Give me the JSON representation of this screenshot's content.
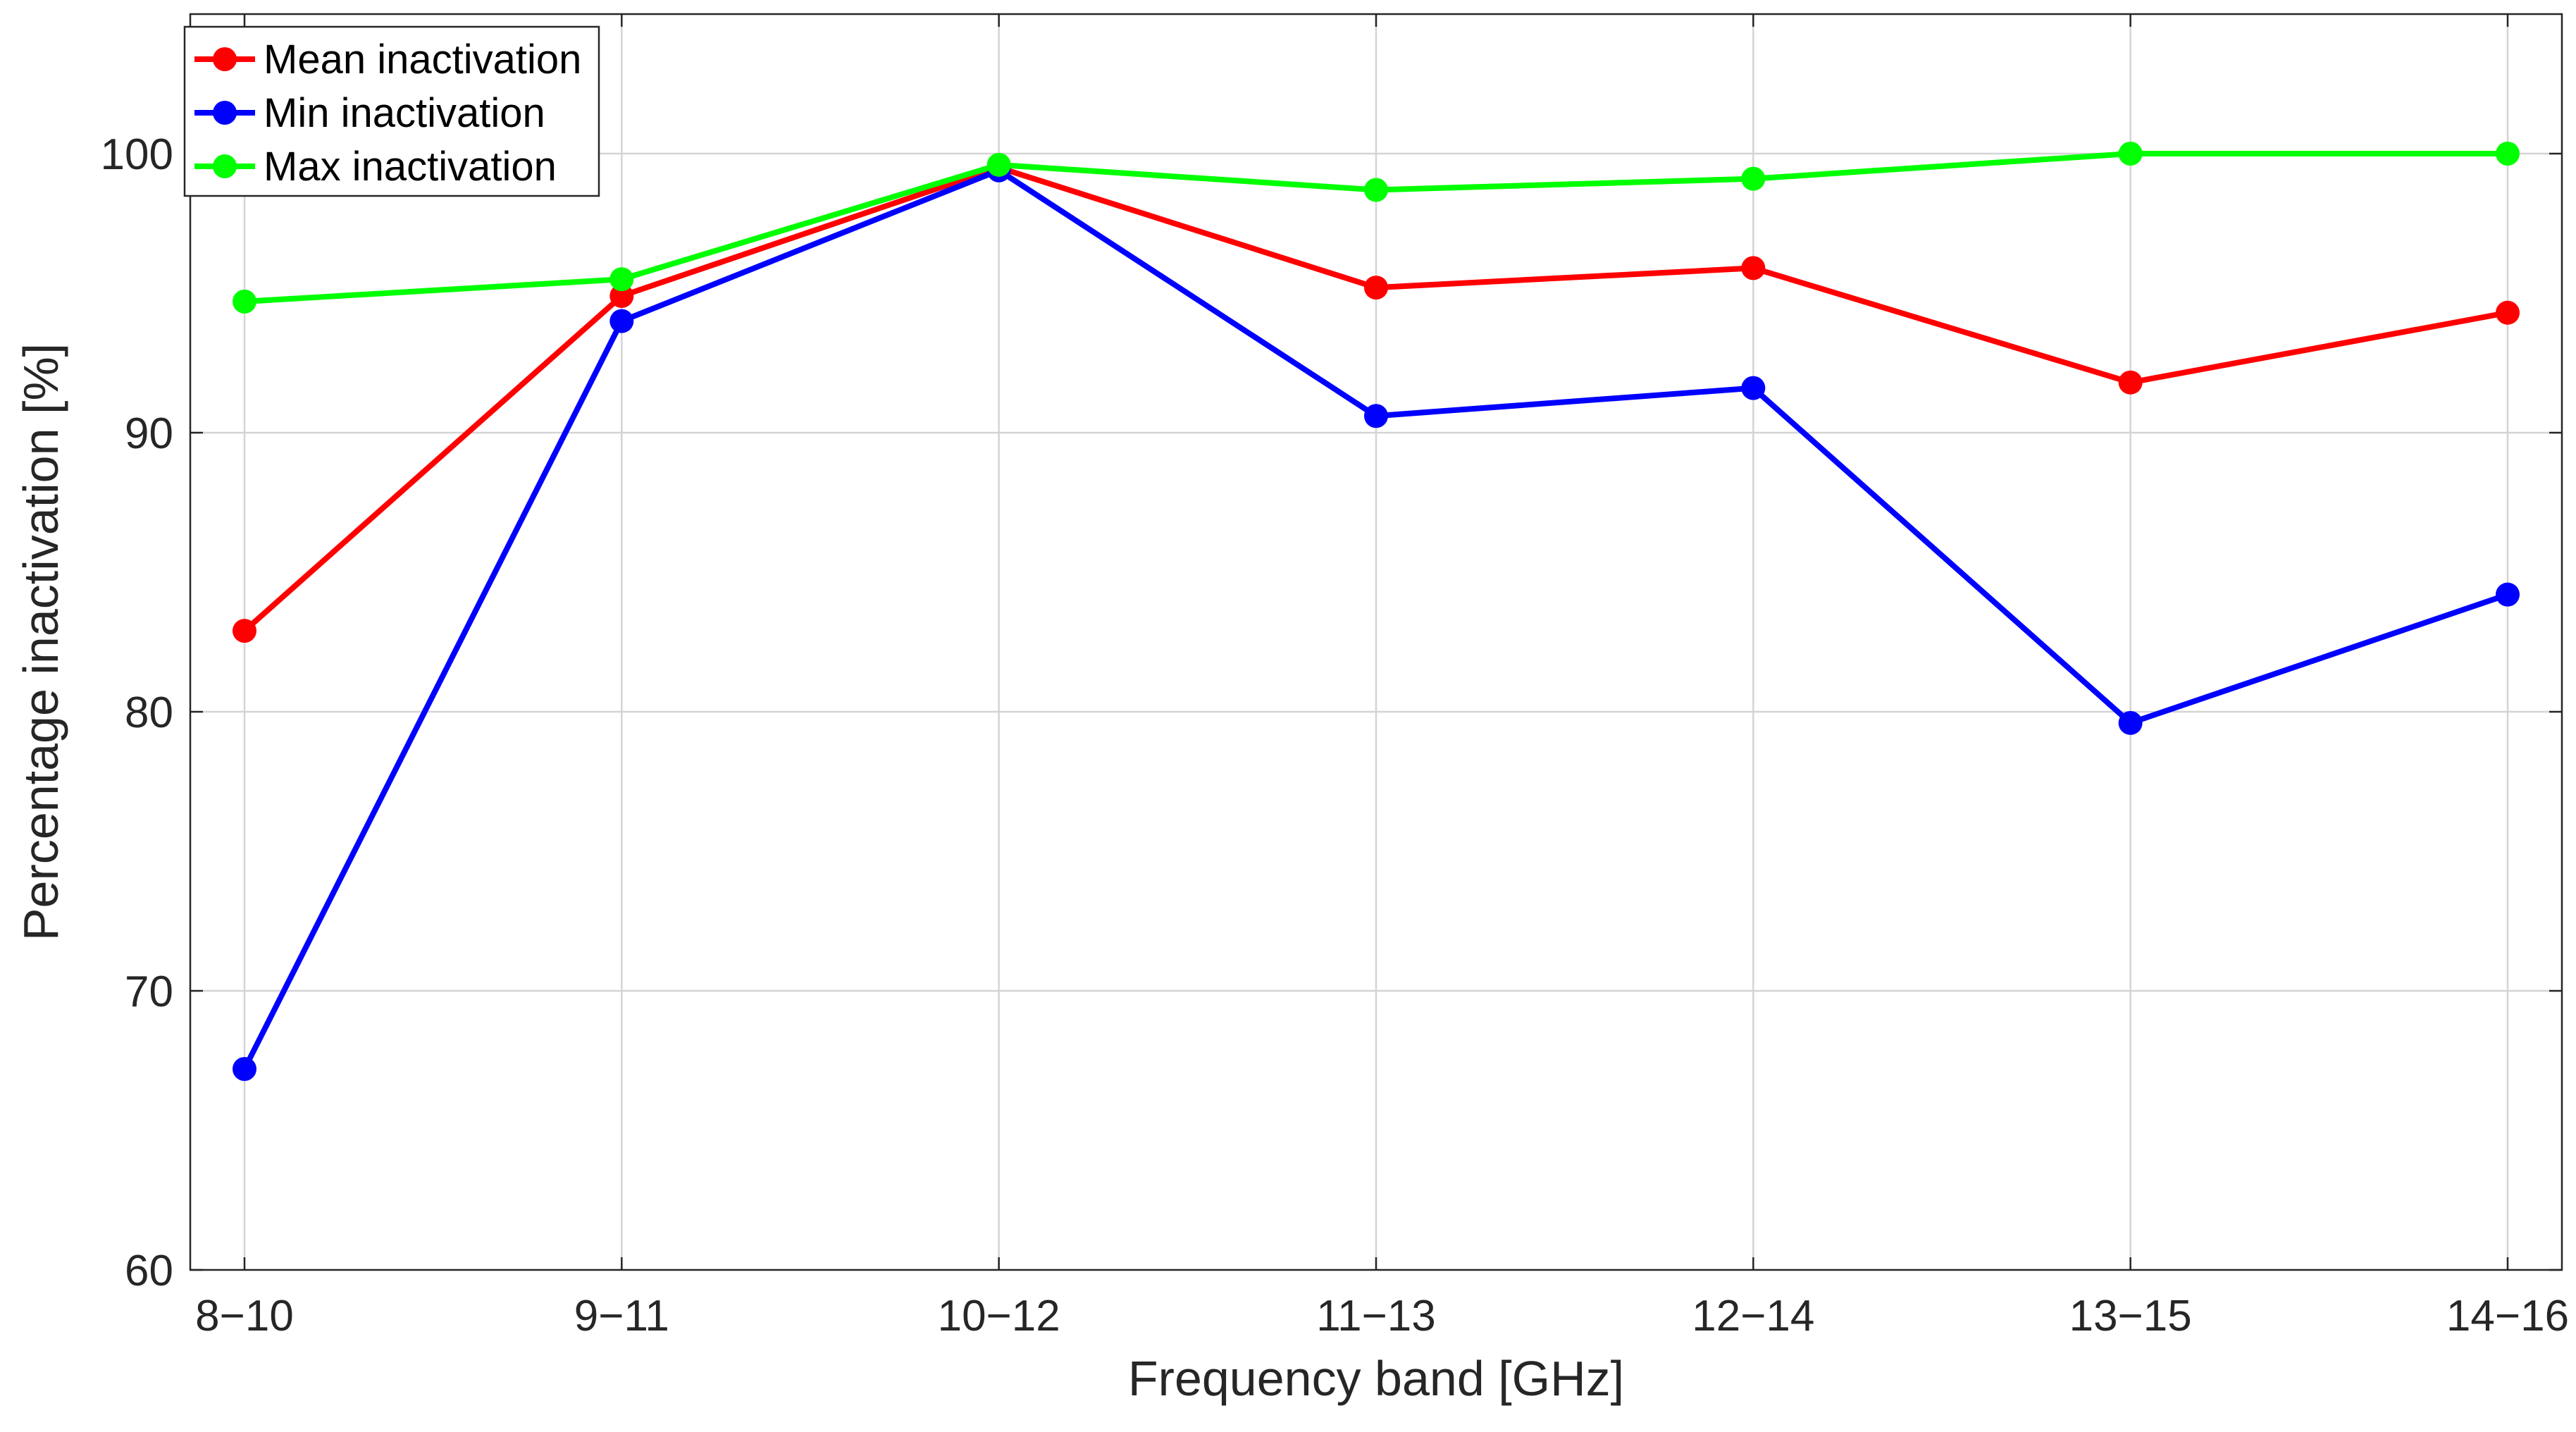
{
  "chart_data": {
    "type": "line",
    "xlabel": "Frequency band [GHz]",
    "ylabel": "Percentage inactivation [%]",
    "categories": [
      "8−10",
      "9−11",
      "10−12",
      "11−13",
      "12−14",
      "13−15",
      "14−16"
    ],
    "ylim": [
      60,
      105
    ],
    "yticks": [
      60,
      70,
      80,
      90,
      100
    ],
    "grid": true,
    "legend_position": "top-left",
    "series": [
      {
        "name": "Mean inactivation",
        "color": "#ff0000",
        "values": [
          82.9,
          94.9,
          99.5,
          95.2,
          95.9,
          91.8,
          94.3
        ]
      },
      {
        "name": "Min inactivation",
        "color": "#0000ff",
        "values": [
          67.2,
          94.0,
          99.4,
          90.6,
          91.6,
          79.6,
          84.2
        ]
      },
      {
        "name": "Max inactivation",
        "color": "#00ff00",
        "values": [
          94.7,
          95.5,
          99.6,
          98.7,
          99.1,
          100.0,
          100.0
        ]
      }
    ]
  }
}
